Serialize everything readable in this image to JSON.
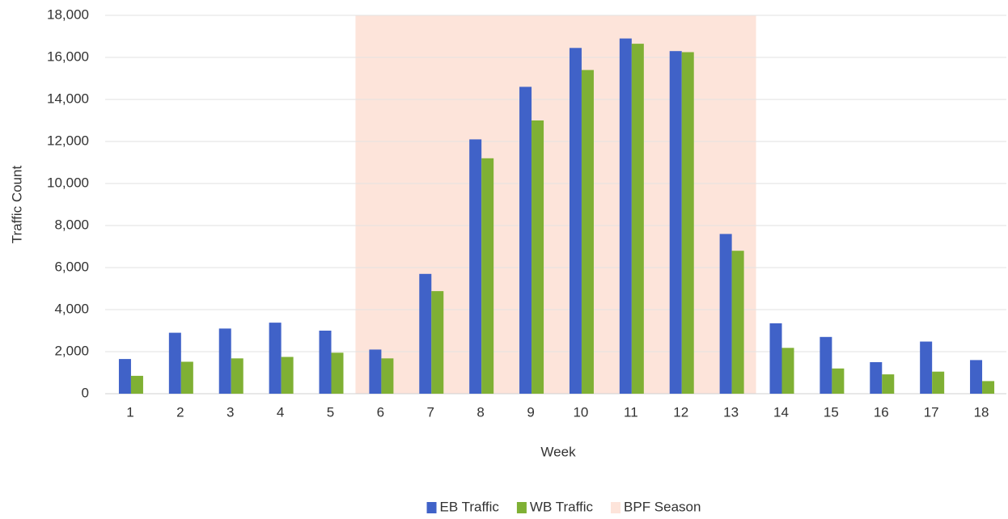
{
  "chart_data": {
    "type": "bar",
    "x_label": "Week",
    "y_label": "Traffic Count",
    "categories": [
      1,
      2,
      3,
      4,
      5,
      6,
      7,
      8,
      9,
      10,
      11,
      12,
      13,
      14,
      15,
      16,
      17,
      18
    ],
    "series": [
      {
        "name": "EB Traffic",
        "color": "#4062c8",
        "values": [
          1650,
          2900,
          3100,
          3380,
          3000,
          2100,
          5700,
          12100,
          14600,
          16450,
          16900,
          16300,
          7600,
          3350,
          2700,
          1500,
          2480,
          1600
        ]
      },
      {
        "name": "WB Traffic",
        "color": "#7fb034",
        "values": [
          850,
          1520,
          1680,
          1750,
          1950,
          1680,
          4880,
          11200,
          13000,
          15400,
          16650,
          16250,
          6800,
          2180,
          1200,
          920,
          1050,
          600
        ]
      }
    ],
    "highlight": {
      "name": "BPF Season",
      "from": 6,
      "to": 13,
      "color": "#fde4da"
    },
    "ylim": [
      0,
      18000
    ],
    "yticks": [
      0,
      {
        "value": 2000,
        "label": "2,000"
      },
      {
        "value": 4000,
        "label": "4,000"
      },
      {
        "value": 6000,
        "label": "6,000"
      },
      {
        "value": 8000,
        "label": "8,000"
      },
      {
        "value": 10000,
        "label": "10,000"
      },
      {
        "value": 12000,
        "label": "12,000"
      },
      {
        "value": 14000,
        "label": "14,000"
      },
      {
        "value": 16000,
        "label": "16,000"
      },
      {
        "value": 18000,
        "label": "18,000"
      }
    ],
    "grid": true,
    "legend": "bottom"
  }
}
